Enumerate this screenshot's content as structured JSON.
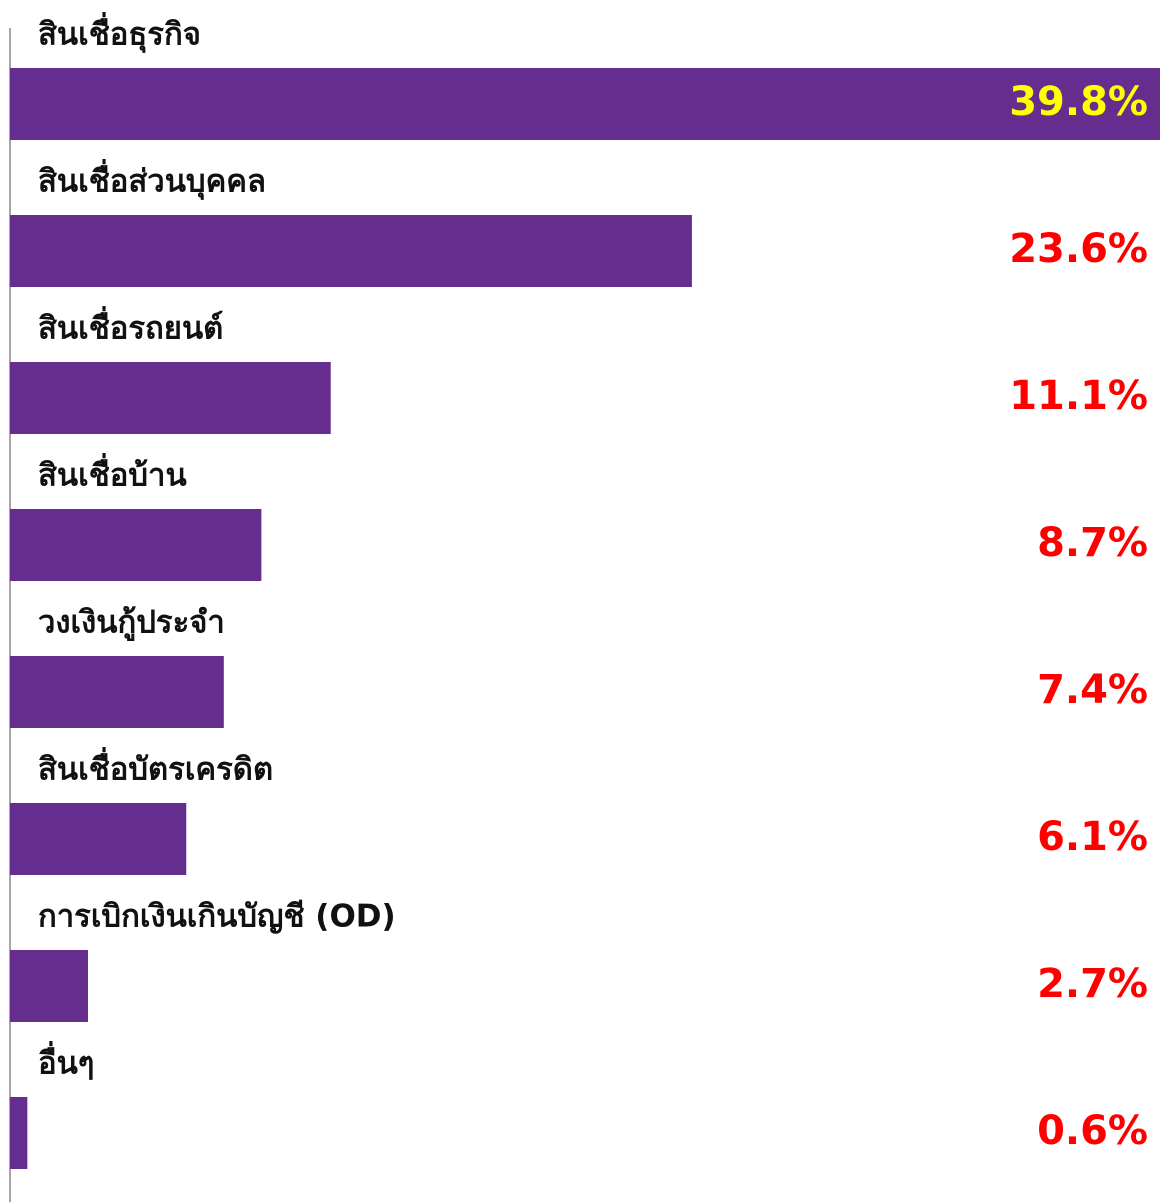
{
  "chart_data": {
    "type": "hbar",
    "categories": [
      "สินเชื่อธุรกิจ",
      "สินเชื่อส่วนบุคคล",
      "สินเชื่อรถยนต์",
      "สินเชื่อบ้าน",
      "วงเงินกู้ประจำ",
      "สินเชื่อบัตรเครดิต",
      "การเบิกเงินเกินบัญชี (OD)",
      "อื่นๆ"
    ],
    "values": [
      39.8,
      23.6,
      11.1,
      8.7,
      7.4,
      6.1,
      2.7,
      0.6
    ],
    "value_labels": [
      "39.8%",
      "23.6%",
      "11.1%",
      "8.7%",
      "7.4%",
      "6.1%",
      "2.7%",
      "0.6%"
    ],
    "value_label_colors": [
      "#ffff00",
      "#ff0000",
      "#ff0000",
      "#ff0000",
      "#ff0000",
      "#ff0000",
      "#ff0000",
      "#ff0000"
    ],
    "color": "#652d8e",
    "xlim": [
      0,
      39.8
    ]
  }
}
